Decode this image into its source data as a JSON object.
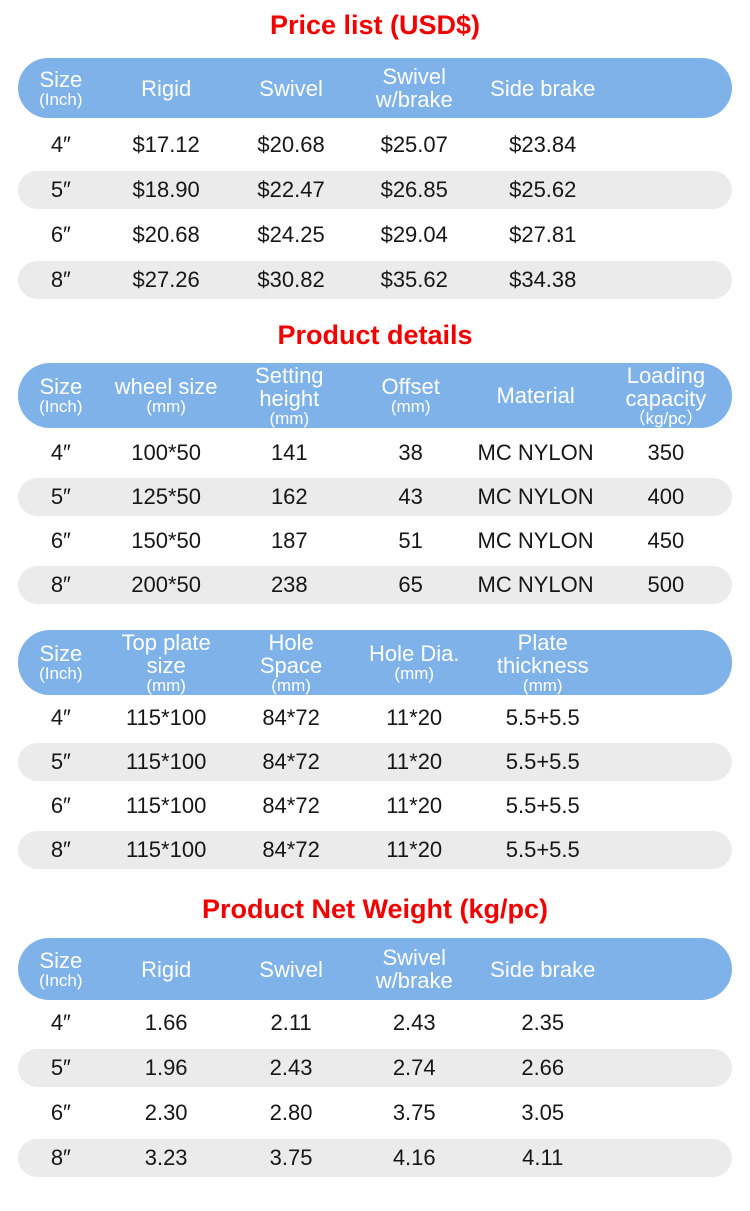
{
  "colors": {
    "title_red": "#f20000",
    "header_blue": "#7eb2e8",
    "row_gray": "#ebebeb",
    "header_text": "#ffffff",
    "body_text": "#161616"
  },
  "sections": [
    {
      "title": "Price list (USD$)",
      "header": [
        [
          "Size",
          "(Inch)"
        ],
        [
          "Rigid"
        ],
        [
          "Swivel"
        ],
        [
          "Swivel",
          "w/brake"
        ],
        [
          "Side brake"
        ]
      ],
      "rows": [
        [
          "4″",
          "$17.12",
          "$20.68",
          "$25.07",
          "$23.84"
        ],
        [
          "5″",
          "$18.90",
          "$22.47",
          "$26.85",
          "$25.62"
        ],
        [
          "6″",
          "$20.68",
          "$24.25",
          "$29.04",
          "$27.81"
        ],
        [
          "8″",
          "$27.26",
          "$30.82",
          "$35.62",
          "$34.38"
        ]
      ]
    },
    {
      "title": "Product details",
      "header": [
        [
          "Size",
          "(Inch)"
        ],
        [
          "wheel size",
          "(mm)"
        ],
        [
          "Setting",
          "height",
          "(mm)"
        ],
        [
          "Offset",
          "(mm)"
        ],
        [
          "Material"
        ],
        [
          "Loading",
          "capacity",
          "（kg/pc）"
        ]
      ],
      "rows": [
        [
          "4″",
          "100*50",
          "141",
          "38",
          "MC NYLON",
          "350"
        ],
        [
          "5″",
          "125*50",
          "162",
          "43",
          "MC NYLON",
          "400"
        ],
        [
          "6″",
          "150*50",
          "187",
          "51",
          "MC NYLON",
          "450"
        ],
        [
          "8″",
          "200*50",
          "238",
          "65",
          "MC NYLON",
          "500"
        ]
      ]
    },
    {
      "title": "",
      "header": [
        [
          "Size",
          "(Inch)"
        ],
        [
          "Top plate",
          "size",
          "(mm)"
        ],
        [
          "Hole",
          "Space",
          "(mm)"
        ],
        [
          "Hole Dia.",
          "(mm)"
        ],
        [
          "Plate",
          "thickness",
          "(mm)"
        ]
      ],
      "rows": [
        [
          "4″",
          "115*100",
          "84*72",
          "11*20",
          "5.5+5.5"
        ],
        [
          "5″",
          "115*100",
          "84*72",
          "11*20",
          "5.5+5.5"
        ],
        [
          "6″",
          "115*100",
          "84*72",
          "11*20",
          "5.5+5.5"
        ],
        [
          "8″",
          "115*100",
          "84*72",
          "11*20",
          "5.5+5.5"
        ]
      ]
    },
    {
      "title": "Product Net Weight (kg/pc)",
      "header": [
        [
          "Size",
          "(Inch)"
        ],
        [
          "Rigid"
        ],
        [
          "Swivel"
        ],
        [
          "Swivel",
          "w/brake"
        ],
        [
          "Side brake"
        ]
      ],
      "rows": [
        [
          "4″",
          "1.66",
          "2.11",
          "2.43",
          "2.35"
        ],
        [
          "5″",
          "1.96",
          "2.43",
          "2.74",
          "2.66"
        ],
        [
          "6″",
          "2.30",
          "2.80",
          "3.75",
          "3.05"
        ],
        [
          "8″",
          "3.23",
          "3.75",
          "4.16",
          "4.11"
        ]
      ]
    }
  ]
}
